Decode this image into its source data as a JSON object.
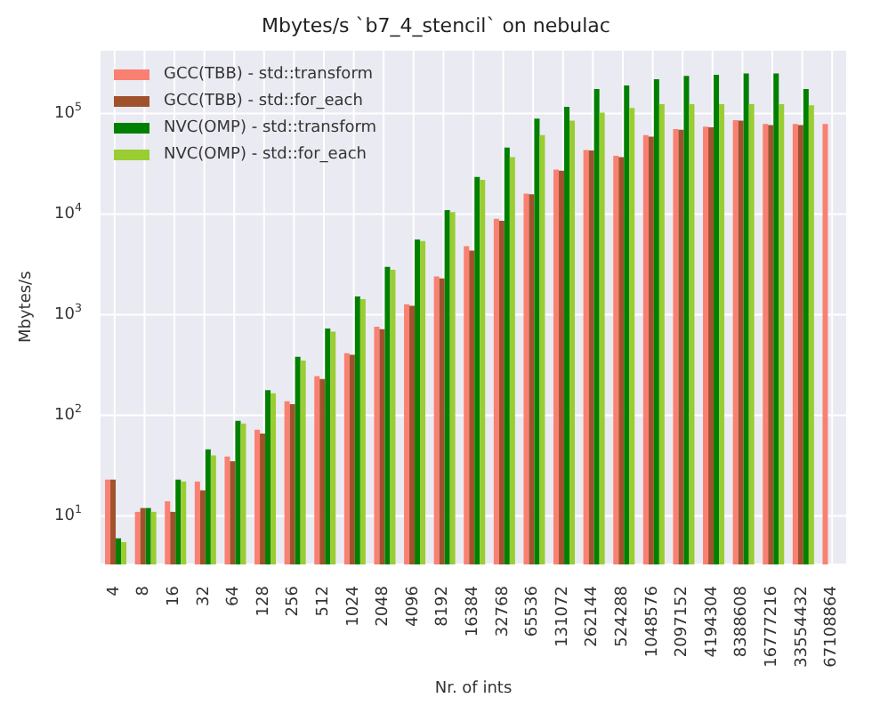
{
  "chart_data": {
    "type": "bar",
    "title": "Mbytes/s `b7_4_stencil` on nebulac",
    "xlabel": "Nr. of ints",
    "ylabel": "Mbytes/s",
    "log": true,
    "grid": true,
    "legend": "top left",
    "categories": [
      "4",
      "8",
      "16",
      "32",
      "64",
      "128",
      "256",
      "512",
      "1024",
      "2048",
      "4096",
      "8192",
      "16384",
      "32768",
      "65536",
      "131072",
      "262144",
      "524288",
      "1048576",
      "2097152",
      "4194304",
      "8388608",
      "16777216",
      "33554432",
      "67108864"
    ],
    "ylim": [
      3.3,
      430000
    ],
    "yticks": [
      {
        "value": 10,
        "label": "10$^{1}$"
      },
      {
        "value": 100,
        "label": "10$^{2}$"
      },
      {
        "value": 1000,
        "label": "10$^{3}$"
      },
      {
        "value": 10000,
        "label": "10$^{4}$"
      },
      {
        "value": 100000,
        "label": "10$^{5}$"
      }
    ],
    "series": [
      {
        "name": "GCC(TBB) - std::transform",
        "color": "#fa8072",
        "values": [
          23,
          11,
          14,
          22,
          39,
          72,
          138,
          245,
          415,
          760,
          1270,
          2400,
          4800,
          9000,
          16000,
          27700,
          43500,
          38000,
          61000,
          70000,
          74000,
          86000,
          79000,
          79000,
          79000
        ]
      },
      {
        "name": "GCC(TBB) - std::for_each",
        "color": "#a0522d",
        "values": [
          23,
          12,
          11,
          18,
          35,
          66,
          129,
          230,
          400,
          720,
          1230,
          2300,
          4350,
          8600,
          15800,
          27000,
          43000,
          37000,
          59000,
          69000,
          73000,
          85000,
          77000,
          77000,
          null
        ]
      },
      {
        "name": "NVC(OMP) - std::transform",
        "color": "#008000",
        "values": [
          6,
          12,
          23,
          46,
          88,
          178,
          383,
          730,
          1520,
          3000,
          5600,
          11000,
          23500,
          46000,
          89000,
          117000,
          175000,
          190000,
          220000,
          237000,
          243000,
          250000,
          250000,
          175000,
          null
        ]
      },
      {
        "name": "NVC(OMP) - std::for_each",
        "color": "#9acd32",
        "values": [
          5.5,
          11,
          22,
          40,
          83,
          166,
          350,
          680,
          1430,
          2800,
          5400,
          10500,
          22000,
          37000,
          61000,
          85000,
          102000,
          114000,
          124000,
          124000,
          124000,
          124000,
          124000,
          121000,
          null
        ]
      }
    ]
  }
}
